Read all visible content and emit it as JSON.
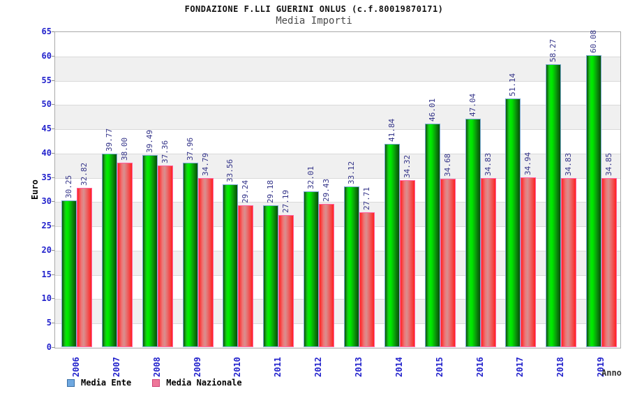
{
  "header": {
    "title": "FONDAZIONE F.LLI GUERINI ONLUS (c.f.80019870171)",
    "subtitle": "Media Importi"
  },
  "chart_data": {
    "type": "bar",
    "title": "FONDAZIONE F.LLI GUERINI ONLUS (c.f.80019870171)",
    "subtitle": "Media Importi",
    "xlabel": "Anno",
    "ylabel": "Euro",
    "ylim": [
      0,
      65
    ],
    "ytick_step": 5,
    "yticks": [
      "0",
      "5",
      "10",
      "15",
      "20",
      "25",
      "30",
      "35",
      "40",
      "45",
      "50",
      "55",
      "60",
      "65"
    ],
    "grid": true,
    "background_bands": "alternating white and light gray every 5 units",
    "legend_position": "bottom-left",
    "value_labels_rotated": true,
    "categories": [
      "2006",
      "2007",
      "2008",
      "2009",
      "2010",
      "2011",
      "2012",
      "2013",
      "2014",
      "2015",
      "2016",
      "2017",
      "2018",
      "2019"
    ],
    "series": [
      {
        "name": "Media Ente",
        "values": [
          30.25,
          39.77,
          39.49,
          37.96,
          33.56,
          29.18,
          32.01,
          33.12,
          41.84,
          46.01,
          47.04,
          51.14,
          58.27,
          60.08
        ],
        "labels": [
          "30.25",
          "39.77",
          "39.49",
          "37.96",
          "33.56",
          "29.18",
          "32.01",
          "33.12",
          "41.84",
          "46.01",
          "47.04",
          "51.14",
          "58.27",
          "60.08"
        ]
      },
      {
        "name": "Media Nazionale",
        "values": [
          32.82,
          38.0,
          37.36,
          34.79,
          29.24,
          27.19,
          29.43,
          27.71,
          34.32,
          34.68,
          34.83,
          34.94,
          34.83,
          34.85
        ],
        "labels": [
          "32.82",
          "38.00",
          "37.36",
          "34.79",
          "29.24",
          "27.19",
          "29.43",
          "27.71",
          "34.32",
          "34.68",
          "34.83",
          "34.94",
          "34.83",
          "34.85"
        ]
      }
    ]
  },
  "colors": {
    "bar_media_ente_green": "#00dd00",
    "bar_media_ente_border": "#7aaad2",
    "bar_media_nazionale_red": "#ff2222",
    "bar_media_nazionale_center": "#d98f8f",
    "bar_media_nazionale_border": "#ff5f9e",
    "legend_media_ente_swatch": "#6fa8e0",
    "legend_media_nazionale_swatch": "#ee7799",
    "axis_tick_label_blue": "#2222cc",
    "value_label_navy": "#333388",
    "band_gray": "#f0f0f0",
    "grid_line": "#d9d9d9"
  }
}
